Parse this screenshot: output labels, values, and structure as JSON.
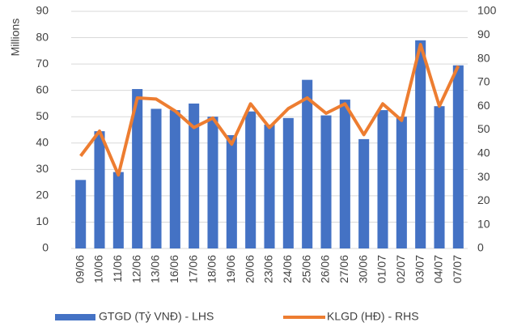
{
  "chart_data": {
    "type": "bar_line",
    "y_label": "Millions",
    "categories": [
      "09/06",
      "10/06",
      "11/06",
      "12/06",
      "13/06",
      "16/06",
      "17/06",
      "18/06",
      "19/06",
      "20/06",
      "23/06",
      "24/06",
      "25/06",
      "26/06",
      "27/06",
      "30/06",
      "01/07",
      "02/07",
      "03/07",
      "04/07",
      "07/07"
    ],
    "series": [
      {
        "name": "GTGD (Tỷ VNĐ) - LHS",
        "type": "bar",
        "color": "#4472c4",
        "axis": "y",
        "values": [
          26,
          44.5,
          29,
          60.5,
          53,
          52.5,
          55,
          50,
          43,
          52,
          47,
          49.5,
          64,
          50.5,
          56.5,
          41.5,
          52.5,
          50,
          79,
          54,
          69.5
        ]
      },
      {
        "name": "KLGD (HĐ) - RHS",
        "type": "line",
        "color": "#ed7d31",
        "axis": "y2",
        "values": [
          39,
          49.5,
          31,
          63.5,
          63,
          58,
          51,
          55,
          44,
          61,
          51,
          59,
          63.5,
          57,
          61,
          48,
          61,
          54,
          86,
          60,
          77
        ]
      }
    ],
    "ylim": [
      0,
      90
    ],
    "yticks": [
      0,
      10,
      20,
      30,
      40,
      50,
      60,
      70,
      80,
      90
    ],
    "y2lim": [
      0,
      100
    ],
    "y2ticks": [
      0,
      10,
      20,
      30,
      40,
      50,
      60,
      70,
      80,
      90,
      100
    ],
    "grid": true
  }
}
